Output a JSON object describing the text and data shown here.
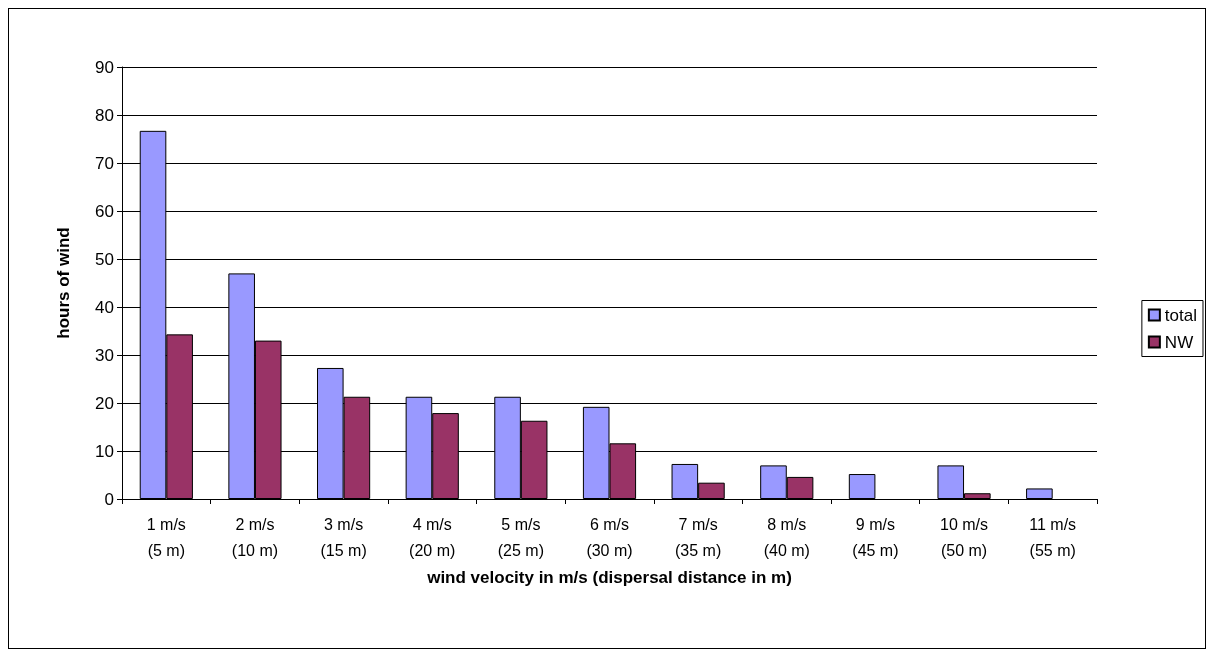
{
  "chart_data": {
    "type": "bar",
    "xlabel": "wind velocity in m/s (dispersal distance in m)",
    "ylabel": "hours of wind",
    "categories": [
      "1 m/s\n(5 m)",
      "2 m/s\n(10 m)",
      "3 m/s\n(15 m)",
      "4 m/s\n(20 m)",
      "5 m/s\n(25 m)",
      "6 m/s\n(30 m)",
      "7 m/s\n(35 m)",
      "8 m/s\n(40 m)",
      "9 m/s\n(45 m)",
      "10 m/s\n(50 m)",
      "11 m/s\n(55 m)"
    ],
    "series": [
      {
        "name": "total",
        "color": "#9999ff",
        "values": [
          76.7,
          47,
          27.3,
          21.3,
          21.3,
          19.2,
          7.3,
          7,
          5.2,
          7,
          2.2
        ]
      },
      {
        "name": "NW",
        "color": "#993366",
        "values": [
          34.3,
          33,
          21.3,
          17.9,
          16.3,
          11.6,
          3.4,
          4.6,
          null,
          1.2,
          null
        ]
      }
    ],
    "ylim": [
      0,
      90
    ],
    "yticks": [
      0,
      10,
      20,
      30,
      40,
      50,
      60,
      70,
      80,
      90
    ],
    "grid": "y",
    "legend": "right"
  }
}
